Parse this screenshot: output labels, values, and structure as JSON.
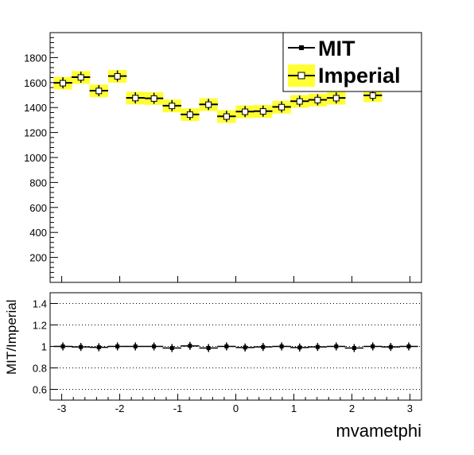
{
  "chart_data": {
    "type": "scatter",
    "xlabel": "mvametphi",
    "xlim": [
      -3.2,
      3.2
    ],
    "x": [
      -2.98,
      -2.67,
      -2.36,
      -2.04,
      -1.73,
      -1.41,
      -1.1,
      -0.79,
      -0.47,
      -0.16,
      0.16,
      0.47,
      0.79,
      1.1,
      1.41,
      1.73,
      2.04,
      2.36,
      2.67,
      2.98
    ],
    "xticks": [
      -3,
      -2,
      -1,
      0,
      1,
      2,
      3
    ],
    "main": {
      "ylim": [
        0,
        2000
      ],
      "yticks": [
        200,
        400,
        600,
        800,
        1000,
        1200,
        1400,
        1600,
        1800
      ],
      "series": [
        {
          "name": "MIT",
          "style": "black line, filled square markers",
          "color": "#000000",
          "values": [
            1598,
            1643,
            1535,
            1652,
            1478,
            1474,
            1415,
            1345,
            1425,
            1330,
            1368,
            1371,
            1405,
            1451,
            1462,
            1477,
            null,
            1498,
            null,
            null
          ]
        },
        {
          "name": "Imperial",
          "style": "yellow fill band, open square markers",
          "color": "#ffff33",
          "values": [
            1595,
            1641,
            1533,
            1650,
            1476,
            1472,
            1413,
            1343,
            1423,
            1328,
            1366,
            1369,
            1403,
            1449,
            1460,
            1475,
            null,
            1496,
            null,
            null
          ]
        }
      ]
    },
    "ratio": {
      "ylabel": "MIT/Imperial",
      "ylim": [
        0.5,
        1.5
      ],
      "yticks": [
        0.6,
        0.8,
        1,
        1.2,
        1.4
      ],
      "gridlines": [
        0.6,
        0.8,
        1.0,
        1.2,
        1.4
      ],
      "values": [
        1.0,
        0.995,
        0.992,
        1.0,
        1.0,
        1.0,
        0.985,
        1.005,
        0.985,
        1.0,
        0.99,
        0.995,
        1.0,
        0.99,
        0.995,
        1.0,
        0.985,
        1.0,
        0.995,
        1.0
      ]
    },
    "legend": {
      "placement": "top-right",
      "entries": [
        "MIT",
        "Imperial"
      ]
    }
  }
}
